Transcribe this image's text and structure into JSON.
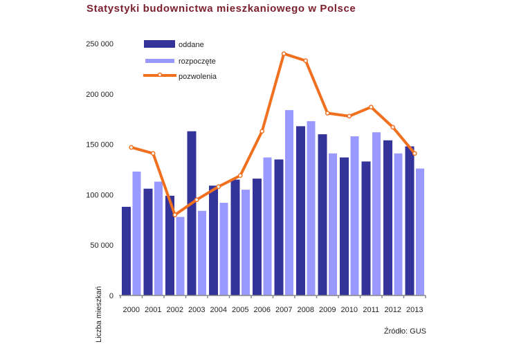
{
  "chart_data": {
    "type": "bar",
    "title": "Statystyki budownictwa mieszkaniowego w Polsce",
    "ylabel": "Liczba mieszkań",
    "xlabel": "",
    "source": "Źródło: GUS",
    "ylim": [
      0,
      250000
    ],
    "yticks": [
      0,
      50000,
      100000,
      150000,
      200000,
      250000
    ],
    "ytick_labels": [
      "0",
      "50 000",
      "100 000",
      "150 000",
      "200 000",
      "250 000"
    ],
    "grid": false,
    "legend_position": "top-left",
    "categories": [
      "2000",
      "2001",
      "2002",
      "2003",
      "2004",
      "2005",
      "2006",
      "2007",
      "2008",
      "2009",
      "2010",
      "2011",
      "2012",
      "2013"
    ],
    "series": [
      {
        "name": "oddane",
        "kind": "bar",
        "color": "#333399",
        "values": [
          88000,
          106000,
          99000,
          163000,
          109000,
          115000,
          116000,
          135000,
          168000,
          160000,
          137000,
          133000,
          154000,
          148000
        ]
      },
      {
        "name": "rozpoczęte",
        "kind": "bar",
        "color": "#9999ff",
        "values": [
          123000,
          113000,
          78000,
          84000,
          92000,
          105000,
          137000,
          184000,
          173000,
          141000,
          158000,
          162000,
          141000,
          126000
        ]
      },
      {
        "name": "pozwolenia",
        "kind": "line",
        "color": "#f07020",
        "values": [
          147000,
          141000,
          80000,
          95000,
          108000,
          119000,
          163000,
          240000,
          233000,
          181000,
          178000,
          187000,
          167000,
          141000
        ]
      }
    ]
  }
}
